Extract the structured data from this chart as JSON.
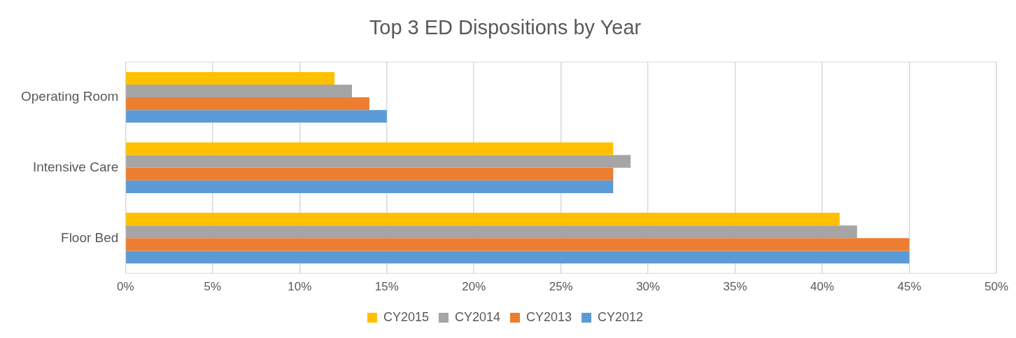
{
  "chart_data": {
    "type": "bar",
    "orientation": "horizontal",
    "title": "Top 3 ED Dispositions by Year",
    "categories": [
      "Operating Room",
      "Intensive Care",
      "Floor Bed"
    ],
    "series": [
      {
        "name": "CY2015",
        "color": "#ffc000",
        "values": [
          12,
          28,
          41
        ]
      },
      {
        "name": "CY2014",
        "color": "#a5a5a5",
        "values": [
          13,
          29,
          42
        ]
      },
      {
        "name": "CY2013",
        "color": "#ed7d31",
        "values": [
          14,
          28,
          45
        ]
      },
      {
        "name": "CY2012",
        "color": "#5b9bd5",
        "values": [
          15,
          28,
          45
        ]
      }
    ],
    "xlim": [
      0,
      50
    ],
    "xticks": [
      {
        "value": 0,
        "label": "0%"
      },
      {
        "value": 5,
        "label": "5%"
      },
      {
        "value": 10,
        "label": "10%"
      },
      {
        "value": 15,
        "label": "15%"
      },
      {
        "value": 20,
        "label": "20%"
      },
      {
        "value": 25,
        "label": "25%"
      },
      {
        "value": 30,
        "label": "30%"
      },
      {
        "value": 35,
        "label": "35%"
      },
      {
        "value": 40,
        "label": "40%"
      },
      {
        "value": 45,
        "label": "45%"
      },
      {
        "value": 50,
        "label": "50%"
      }
    ],
    "grid": "x",
    "legend": "bottom"
  }
}
